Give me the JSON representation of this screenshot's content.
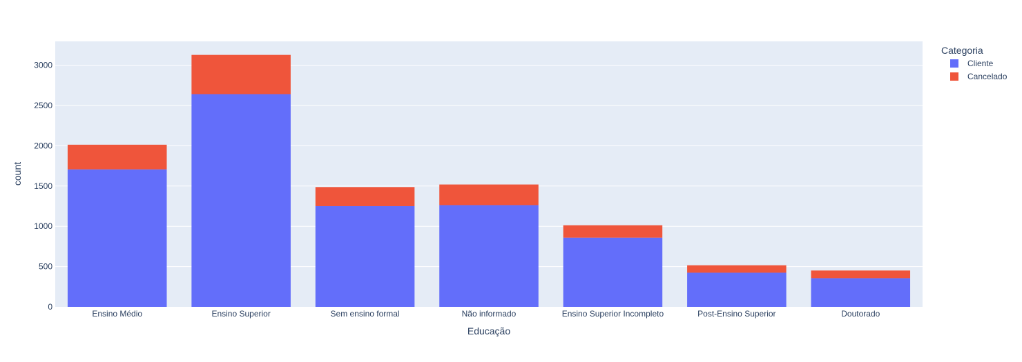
{
  "chart_data": {
    "type": "bar",
    "stacked": true,
    "title": "",
    "xlabel": "Educação",
    "ylabel": "count",
    "categories": [
      "Ensino Médio",
      "Ensino Superior",
      "Sem ensino formal",
      "Não informado",
      "Ensino Superior Incompleto",
      "Post-Ensino Superior",
      "Doutorado"
    ],
    "series": [
      {
        "name": "Cliente",
        "color": "#636efa",
        "values": [
          1707,
          2641,
          1250,
          1263,
          859,
          424,
          356
        ]
      },
      {
        "name": "Cancelado",
        "color": "#ef553b",
        "values": [
          306,
          487,
          237,
          256,
          154,
          92,
          95
        ]
      }
    ],
    "ylim": [
      0,
      3296
    ],
    "yticks": [
      0,
      500,
      1000,
      1500,
      2000,
      2500,
      3000
    ],
    "grid": true,
    "legend": {
      "title": "Categoria",
      "placement": "top-right"
    },
    "plot_background": "#e5ecf6"
  }
}
